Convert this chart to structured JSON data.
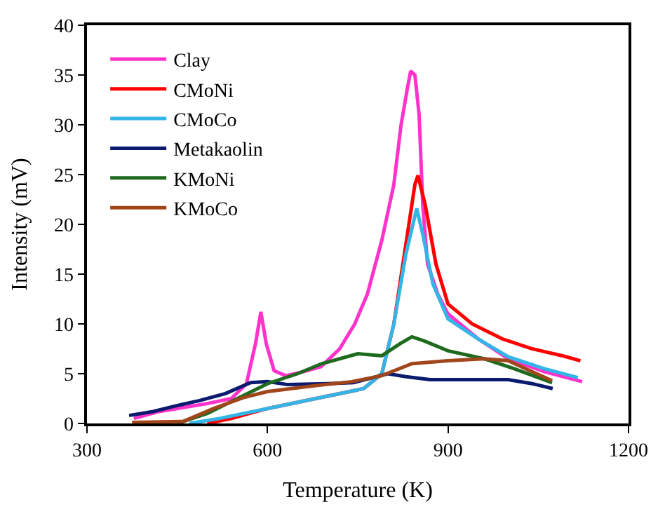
{
  "chart_data": {
    "type": "line",
    "xlabel": "Temperature (K)",
    "ylabel": "Intensity (mV)",
    "xlim": [
      300,
      1200
    ],
    "xticks": [
      300,
      600,
      900,
      1200
    ],
    "ylim": [
      0,
      40
    ],
    "yticks": [
      0,
      5,
      10,
      15,
      20,
      25,
      30,
      35,
      40
    ],
    "legend": "top left",
    "marker": "none",
    "line_style": "solid",
    "series": [
      {
        "name": "Clay",
        "color": "#ff33cc",
        "x": [
          378,
          420,
          460,
          500,
          540,
          565,
          580,
          589,
          598,
          611,
          630,
          660,
          689,
          720,
          745,
          766,
          790,
          810,
          822,
          832,
          838,
          845,
          852,
          858,
          866,
          883,
          900,
          950,
          1000,
          1060,
          1123
        ],
        "values": [
          0.5,
          1.2,
          1.6,
          2.0,
          2.5,
          4,
          8,
          11.2,
          8,
          5.3,
          4.8,
          5.2,
          5.7,
          7.5,
          10,
          13,
          18.4,
          24,
          30,
          33.5,
          35.4,
          35,
          31,
          22,
          16,
          13,
          11,
          8.5,
          6.5,
          5.2,
          4.2
        ]
      },
      {
        "name": "CMoNi",
        "color": "#ff0000",
        "x": [
          500,
          540,
          600,
          680,
          760,
          790,
          810,
          830,
          845,
          850,
          862,
          880,
          900,
          940,
          990,
          1040,
          1090,
          1120
        ],
        "values": [
          0,
          0.5,
          1.5,
          2.5,
          3.5,
          5,
          10,
          18,
          24,
          24.9,
          22,
          16,
          12,
          10,
          8.5,
          7.5,
          6.8,
          6.3
        ]
      },
      {
        "name": "CMoCo",
        "color": "#33b5e8",
        "x": [
          470,
          520,
          600,
          680,
          760,
          790,
          810,
          830,
          848,
          858,
          875,
          900,
          950,
          1000,
          1060,
          1116
        ],
        "values": [
          0,
          0.5,
          1.5,
          2.5,
          3.5,
          5,
          10,
          17,
          21.6,
          19,
          14,
          10.5,
          8.5,
          6.7,
          5.5,
          4.6
        ]
      },
      {
        "name": "Metakaolin",
        "color": "#0a1a6e",
        "x": [
          370,
          410,
          450,
          487,
          530,
          572,
          600,
          634,
          700,
          743,
          800,
          830,
          870,
          1000,
          1040,
          1074
        ],
        "values": [
          0.8,
          1.2,
          1.8,
          2.3,
          3.0,
          4.1,
          4.2,
          3.9,
          4.0,
          4.1,
          5.0,
          4.7,
          4.4,
          4.4,
          4.0,
          3.5
        ]
      },
      {
        "name": "KMoNi",
        "color": "#1e6a1e",
        "x": [
          450,
          500,
          550,
          600,
          650,
          690,
          750,
          790,
          820,
          840,
          860,
          900,
          960,
          1010,
          1073
        ],
        "values": [
          0,
          1,
          2.5,
          4,
          5,
          6,
          7,
          6.8,
          8,
          8.7,
          8.3,
          7.3,
          6.5,
          5.5,
          4.1
        ]
      },
      {
        "name": "KMoCo",
        "color": "#a0461a",
        "x": [
          375,
          460,
          510,
          560,
          600,
          680,
          740,
          790,
          840,
          900,
          960,
          1000,
          1040,
          1073
        ],
        "values": [
          0.1,
          0.2,
          1.5,
          2.6,
          3.2,
          3.8,
          4.2,
          4.8,
          6,
          6.3,
          6.5,
          6.3,
          5.2,
          4.3
        ]
      }
    ]
  }
}
